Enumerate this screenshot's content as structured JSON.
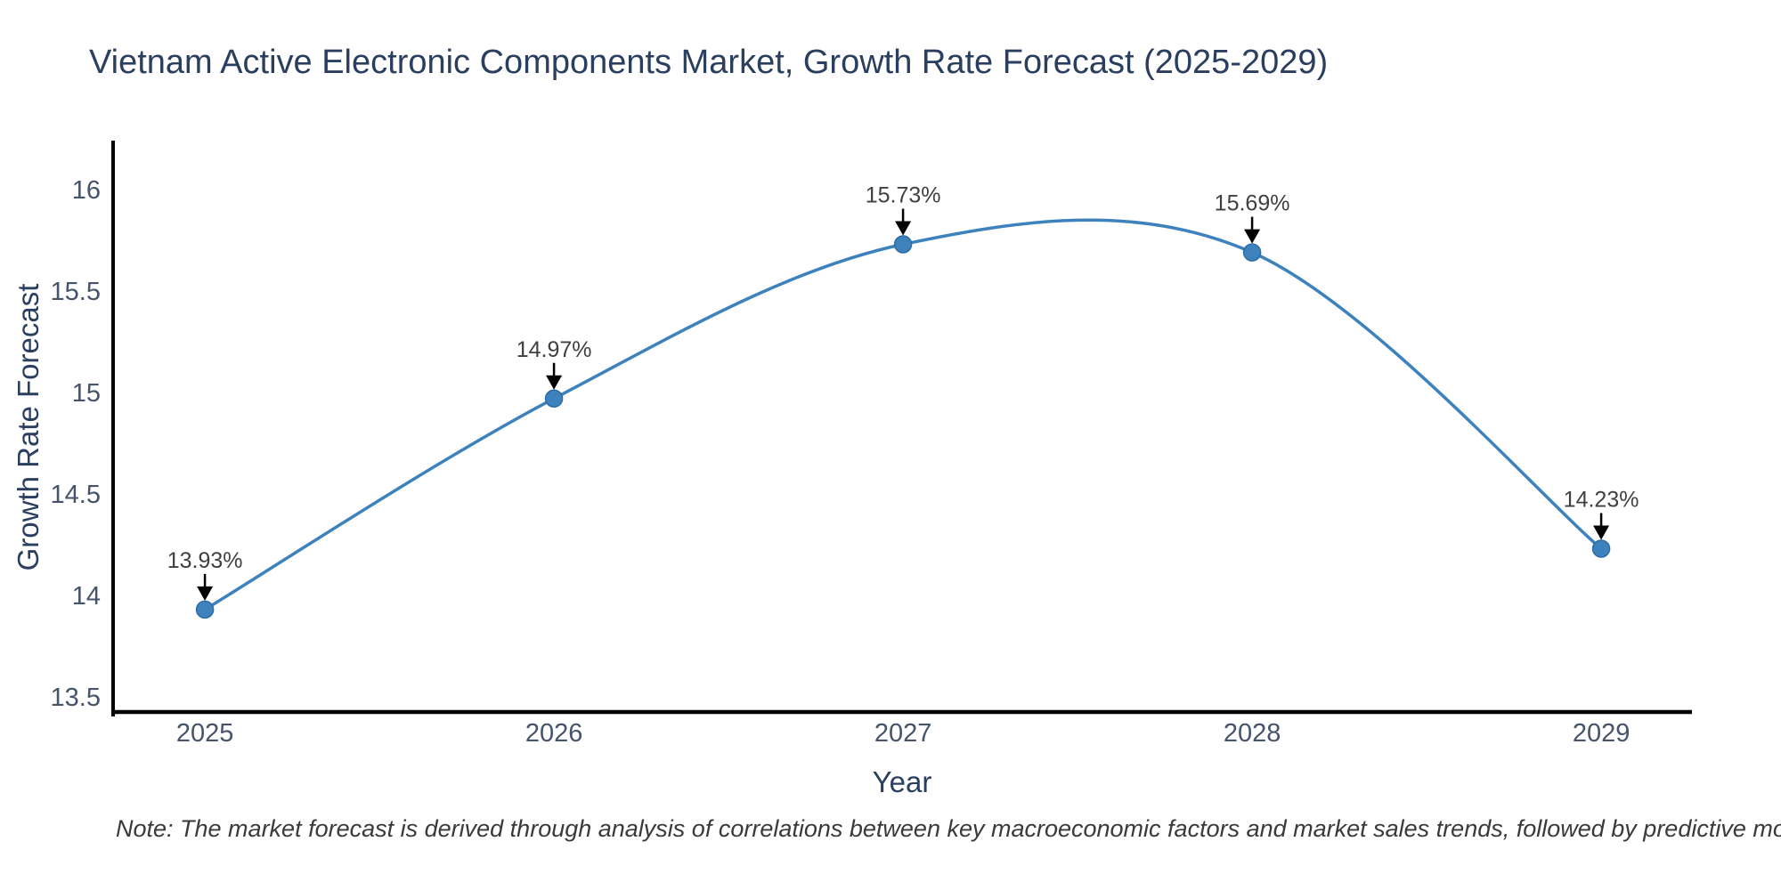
{
  "chart_data": {
    "type": "line",
    "title": "Vietnam Active Electronic Components Market, Growth Rate Forecast (2025-2029)",
    "xlabel": "Year",
    "ylabel": "Growth Rate Forecast",
    "x": [
      2025,
      2026,
      2027,
      2028,
      2029
    ],
    "values": [
      13.93,
      14.97,
      15.73,
      15.69,
      14.23
    ],
    "point_labels": [
      "13.93%",
      "14.97%",
      "15.73%",
      "15.69%",
      "14.23%"
    ],
    "x_tick_values": [
      2025,
      2026,
      2027,
      2028,
      2029
    ],
    "x_tick_labels": [
      "2025",
      "2026",
      "2027",
      "2028",
      "2029"
    ],
    "y_tick_values": [
      13.5,
      14,
      14.5,
      15,
      15.5,
      16
    ],
    "y_tick_labels": [
      "13.5",
      "14",
      "14.5",
      "15",
      "15.5",
      "16"
    ],
    "x_range": [
      2024.737,
      2029.26
    ],
    "y_range": [
      13.425,
      16.241
    ],
    "line_shape": "spline",
    "grid": false,
    "legend": "none",
    "marker_size": 19,
    "colors": {
      "line": "#3e82bd",
      "marker": "#3e82bd",
      "marker_edge": "#2e6da4",
      "axis": "#000000",
      "tick_label": "#45536b",
      "title": "#2a3f5f",
      "annotation": "#404040",
      "arrow": "#000000",
      "background": "#ffffff"
    }
  },
  "note": {
    "text": "Note: The market forecast is derived through analysis of correlations between key macroeconomic factors and market sales trends, followed by predictive modeling to project future sales."
  }
}
